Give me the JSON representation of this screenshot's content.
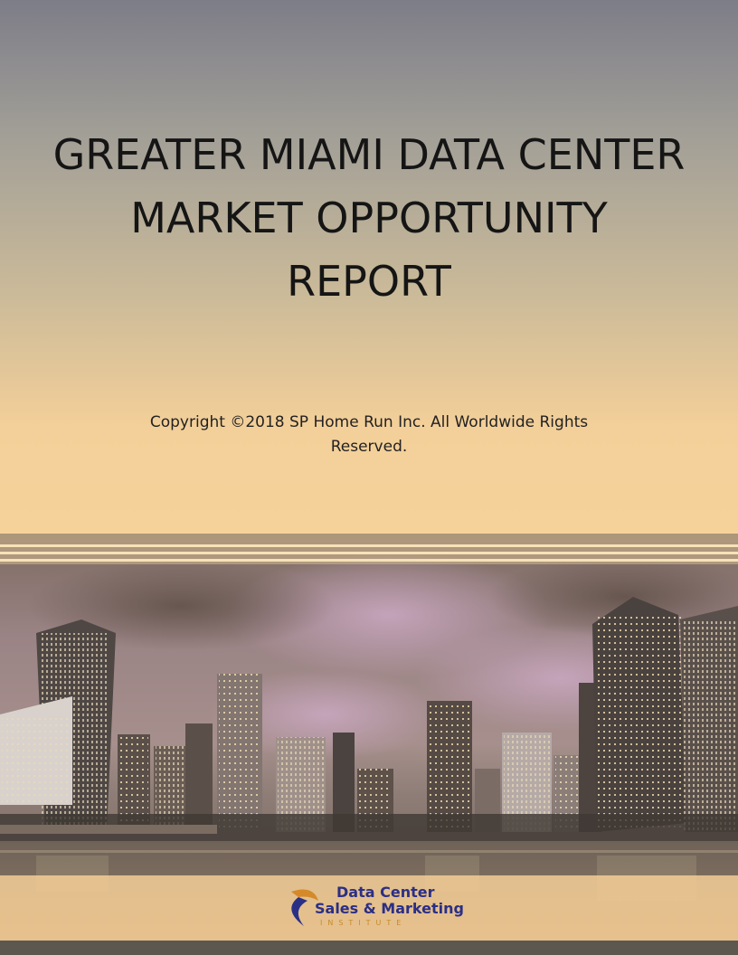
{
  "title_lines": [
    "GREATER MIAMI DATA CENTER",
    "MARKET OPPORTUNITY",
    "REPORT"
  ],
  "copyright_lines": [
    "Copyright ©2018 SP Home Run Inc. All Worldwide Rights",
    "Reserved."
  ],
  "logo": {
    "line1": "Data Center",
    "line2": "Sales & Marketing",
    "line3": "INSTITUTE"
  },
  "colors": {
    "accent": "#2b2f86",
    "gold": "#c58b2b"
  }
}
